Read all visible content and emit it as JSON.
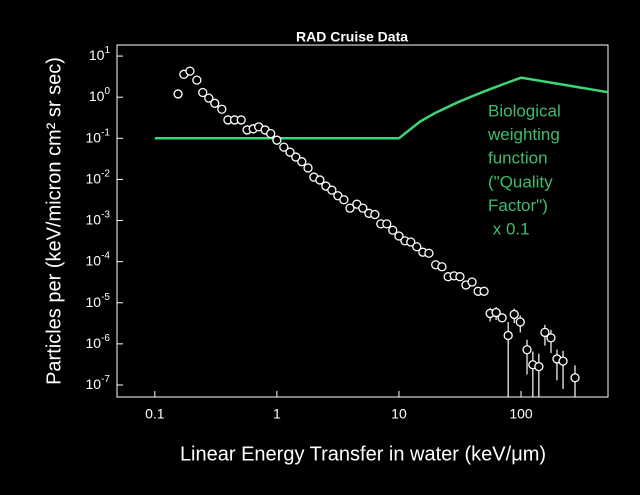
{
  "chart_data": {
    "type": "scatter",
    "title": "RAD Cruise Data",
    "xlabel": "Linear Energy Transfer in water (keV/μm)",
    "ylabel": "Particles per (keV/micron cm² sr sec)",
    "xscale": "log",
    "yscale": "log",
    "xlim": [
      0.049,
      516
    ],
    "ylim": [
      5.1e-08,
      18.6
    ],
    "xticks": [
      0.1,
      1,
      10,
      100
    ],
    "yticks": [
      {
        "value": 10,
        "label": "10",
        "sup": "1"
      },
      {
        "value": 1,
        "label": "10",
        "sup": "0"
      },
      {
        "value": 0.1,
        "label": "10",
        "sup": "-1"
      },
      {
        "value": 0.01,
        "label": "10",
        "sup": "-2"
      },
      {
        "value": 0.001,
        "label": "10",
        "sup": "-3"
      },
      {
        "value": 0.0001,
        "label": "10",
        "sup": "-4"
      },
      {
        "value": 1e-05,
        "label": "10",
        "sup": "-5"
      },
      {
        "value": 1e-06,
        "label": "10",
        "sup": "-6"
      },
      {
        "value": 1e-07,
        "label": "10",
        "sup": "-7"
      }
    ],
    "points": {
      "color": "#ffffff",
      "x": [
        0.155,
        0.173,
        0.194,
        0.221,
        0.247,
        0.277,
        0.31,
        0.354,
        0.397,
        0.45,
        0.51,
        0.57,
        0.64,
        0.71,
        0.8,
        0.89,
        1.0,
        1.14,
        1.28,
        1.43,
        1.6,
        1.8,
        2.01,
        2.25,
        2.52,
        2.82,
        3.16,
        3.54,
        3.97,
        4.52,
        5.06,
        5.67,
        6.35,
        7.1,
        7.95,
        8.9,
        10,
        11.2,
        12.5,
        14.0,
        15.7,
        17.6,
        20,
        22.5,
        25.3,
        28.3,
        31.6,
        35.4,
        39.7,
        44.5,
        49.8,
        55.8,
        62.5,
        70,
        78.5,
        88,
        98.6,
        112,
        125,
        140,
        157,
        176,
        197,
        221,
        277
      ],
      "values": [
        1.2,
        3.6,
        4.3,
        2.6,
        1.3,
        0.95,
        0.71,
        0.51,
        0.28,
        0.28,
        0.28,
        0.16,
        0.17,
        0.19,
        0.16,
        0.13,
        0.09,
        0.061,
        0.046,
        0.035,
        0.027,
        0.019,
        0.0114,
        0.0097,
        0.0069,
        0.0055,
        0.004,
        0.0032,
        0.002,
        0.0025,
        0.002,
        0.0015,
        0.0014,
        0.00083,
        0.00083,
        0.00058,
        0.00042,
        0.00032,
        0.0003,
        0.00023,
        0.00017,
        0.00016,
        8.4e-05,
        7.5e-05,
        4.3e-05,
        4.5e-05,
        4.3e-05,
        2.7e-05,
        3.2e-05,
        1.9e-05,
        1.9e-05,
        5.5e-06,
        5.8e-06,
        4.3e-06,
        1.6e-06,
        5.2e-06,
        3.4e-06,
        7.2e-07,
        3.1e-07,
        2.8e-07,
        1.9e-06,
        1.4e-06,
        4.3e-07,
        3.8e-07,
        1.5e-07
      ],
      "errors": [
        null,
        null,
        null,
        null,
        null,
        null,
        null,
        null,
        null,
        null,
        null,
        null,
        null,
        null,
        null,
        null,
        null,
        null,
        null,
        null,
        null,
        null,
        null,
        null,
        null,
        null,
        null,
        null,
        null,
        null,
        null,
        null,
        null,
        null,
        null,
        null,
        null,
        null,
        null,
        null,
        null,
        null,
        null,
        null,
        null,
        null,
        null,
        null,
        null,
        null,
        null,
        2e-06,
        2e-06,
        null,
        1.8e-06,
        2e-06,
        1.5e-06,
        5.4e-07,
        3.4e-07,
        3e-07,
        1e-06,
        8e-07,
        3e-07,
        3e-07,
        1.5e-07
      ]
    },
    "curve": {
      "color": "#3cd67a",
      "x": [
        0.1,
        10,
        15,
        20,
        30,
        40,
        50,
        60,
        70,
        80,
        90,
        100,
        200,
        300,
        400,
        516
      ],
      "values": [
        0.1,
        0.1,
        0.26,
        0.42,
        0.74,
        1.06,
        1.38,
        1.7,
        2.02,
        2.34,
        2.66,
        2.98,
        2.12,
        1.73,
        1.5,
        1.32
      ]
    },
    "annotation": [
      "Biological",
      "weighting",
      "function",
      "(\"Quality",
      "Factor\")",
      " x 0.1"
    ]
  }
}
